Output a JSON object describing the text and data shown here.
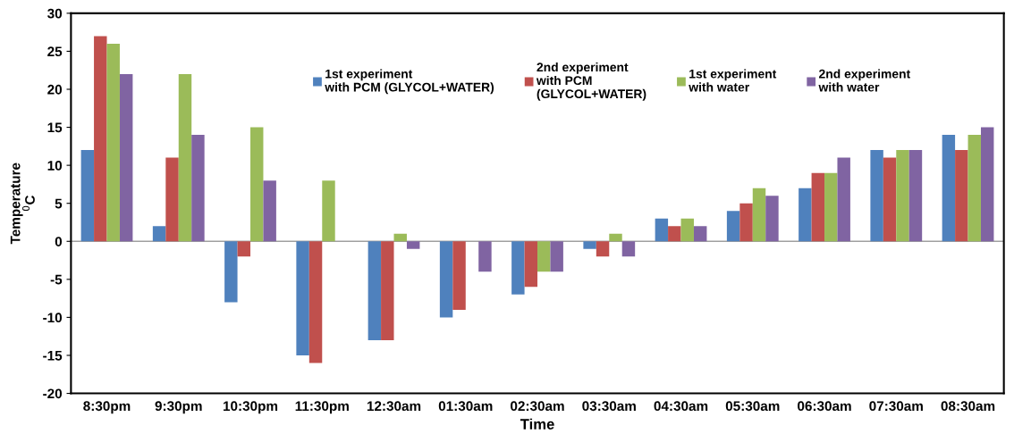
{
  "chart_data": {
    "type": "bar",
    "xlabel": "Time",
    "ylabel": "Temperature\n$^{0}$C",
    "categories": [
      "8:30pm",
      "9:30pm",
      "10:30pm",
      "11:30pm",
      "12:30am",
      "01:30am",
      "02:30am",
      "03:30am",
      "04:30am",
      "05:30am",
      "06:30am",
      "07:30am",
      "08:30am"
    ],
    "series": [
      {
        "name": "1st experiment\nwith PCM (GLYCOL+WATER)",
        "color": "#4f81bd",
        "values": [
          12,
          2,
          -8,
          -15,
          -13,
          -10,
          -7,
          -1,
          3,
          4,
          7,
          12,
          14
        ]
      },
      {
        "name": "2nd experiment\nwith PCM\n(GLYCOL+WATER)",
        "color": "#c0504d",
        "values": [
          27,
          11,
          -2,
          -16,
          -13,
          -9,
          -6,
          -2,
          2,
          5,
          9,
          11,
          12
        ]
      },
      {
        "name": "1st experiment\nwith water",
        "color": "#9bbb59",
        "values": [
          26,
          22,
          15,
          8,
          1,
          0,
          -4,
          1,
          3,
          7,
          9,
          12,
          14
        ]
      },
      {
        "name": "2nd experiment\nwith water",
        "color": "#8064a2",
        "values": [
          22,
          14,
          8,
          0,
          -1,
          -4,
          -4,
          -2,
          2,
          6,
          11,
          12,
          15
        ]
      }
    ],
    "ylim": [
      -20,
      30
    ],
    "yticks": [
      -20,
      -15,
      -10,
      -5,
      0,
      5,
      10,
      15,
      20,
      25,
      30
    ],
    "ref_lines": [
      {
        "axis": "y",
        "value": 0,
        "color": "#a0a0a0"
      }
    ],
    "legend": "top"
  }
}
